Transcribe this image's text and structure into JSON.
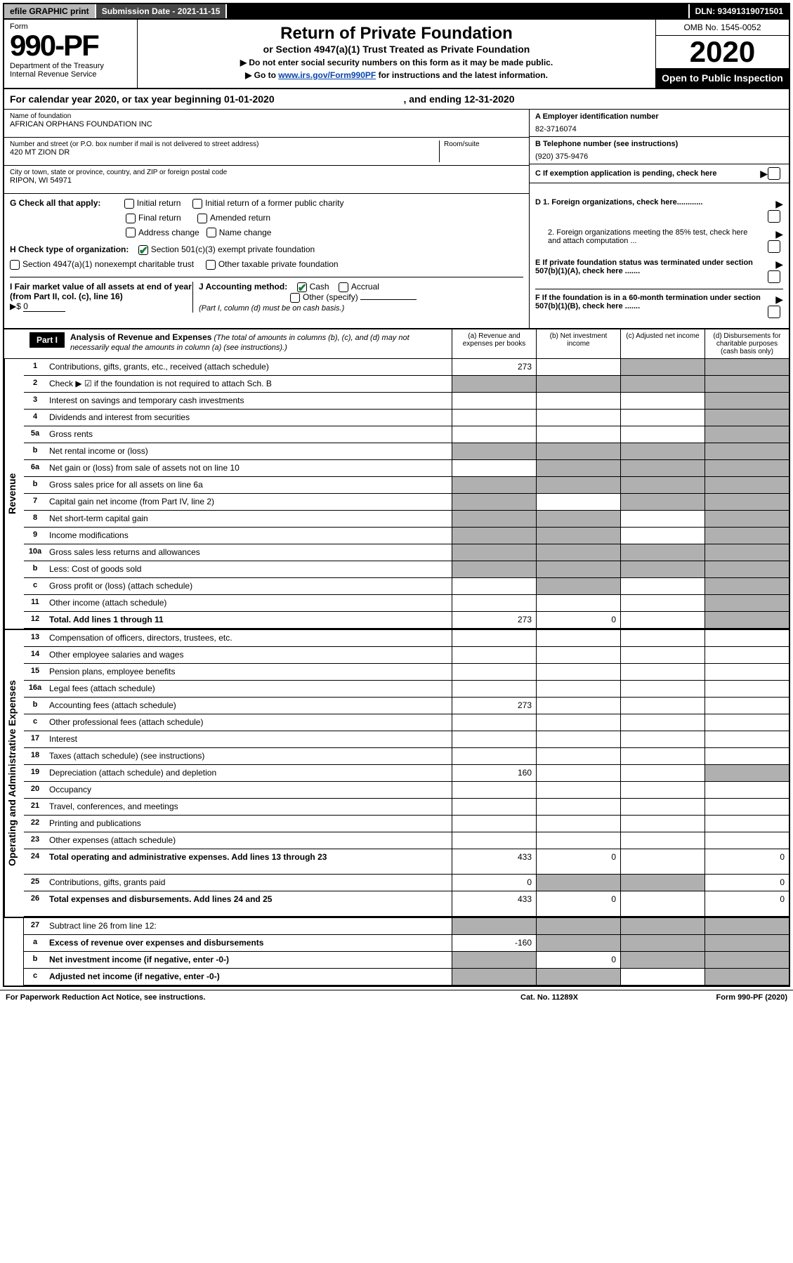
{
  "topbar": {
    "efile": "efile GRAPHIC print",
    "subdate": "Submission Date - 2021-11-15",
    "dln": "DLN: 93491319071501"
  },
  "header": {
    "form_label": "Form",
    "form_num": "990-PF",
    "dept": "Department of the Treasury\nInternal Revenue Service",
    "title": "Return of Private Foundation",
    "subtitle": "or Section 4947(a)(1) Trust Treated as Private Foundation",
    "instr1": "▶ Do not enter social security numbers on this form as it may be made public.",
    "instr2_pre": "▶ Go to ",
    "instr2_link": "www.irs.gov/Form990PF",
    "instr2_post": " for instructions and the latest information.",
    "omb": "OMB No. 1545-0052",
    "year": "2020",
    "open_public": "Open to Public Inspection"
  },
  "calyear": {
    "text_pre": "For calendar year 2020, or tax year beginning ",
    "begin": "01-01-2020",
    "text_mid": " , and ending ",
    "end": "12-31-2020"
  },
  "entity": {
    "name_label": "Name of foundation",
    "name": "AFRICAN ORPHANS FOUNDATION INC",
    "addr_label": "Number and street (or P.O. box number if mail is not delivered to street address)",
    "room_label": "Room/suite",
    "addr": "420 MT ZION DR",
    "city_label": "City or town, state or province, country, and ZIP or foreign postal code",
    "city": "RIPON, WI  54971"
  },
  "right": {
    "a_label": "A Employer identification number",
    "a_value": "82-3716074",
    "b_label": "B Telephone number (see instructions)",
    "b_value": "(920) 375-9476",
    "c_label": "C If exemption application is pending, check here",
    "d1_label": "D 1. Foreign organizations, check here............",
    "d2_label": "2. Foreign organizations meeting the 85% test, check here and attach computation ...",
    "e_label": "E  If private foundation status was terminated under section 507(b)(1)(A), check here .......",
    "f_label": "F  If the foundation is in a 60-month termination under section 507(b)(1)(B), check here ......."
  },
  "g": {
    "label": "G Check all that apply:",
    "opts": [
      "Initial return",
      "Initial return of a former public charity",
      "Final return",
      "Amended return",
      "Address change",
      "Name change"
    ]
  },
  "h": {
    "label": "H Check type of organization:",
    "opt1": "Section 501(c)(3) exempt private foundation",
    "opt2": "Section 4947(a)(1) nonexempt charitable trust",
    "opt3": "Other taxable private foundation"
  },
  "i": {
    "label": "I Fair market value of all assets at end of year (from Part II, col. (c), line 16)",
    "value_prefix": "▶$ ",
    "value": "0"
  },
  "j": {
    "label": "J Accounting method:",
    "cash": "Cash",
    "accrual": "Accrual",
    "other": "Other (specify)",
    "note": "(Part I, column (d) must be on cash basis.)"
  },
  "part1": {
    "label": "Part I",
    "title": "Analysis of Revenue and Expenses",
    "note": " (The total of amounts in columns (b), (c), and (d) may not necessarily equal the amounts in column (a) (see instructions).)",
    "col_a": "(a) Revenue and expenses per books",
    "col_b": "(b) Net investment income",
    "col_c": "(c) Adjusted net income",
    "col_d": "(d) Disbursements for charitable purposes (cash basis only)"
  },
  "sidelabels": {
    "revenue": "Revenue",
    "expenses": "Operating and Administrative Expenses"
  },
  "rows": [
    {
      "n": "1",
      "d": "Contributions, gifts, grants, etc., received (attach schedule)",
      "a": "273",
      "b": "",
      "c": "sh",
      "dcol": "sh"
    },
    {
      "n": "2",
      "d": "Check ▶ ☑ if the foundation is not required to attach Sch. B",
      "a": "sh",
      "b": "sh",
      "c": "sh",
      "dcol": "sh",
      "nocells": true
    },
    {
      "n": "3",
      "d": "Interest on savings and temporary cash investments",
      "a": "",
      "b": "",
      "c": "",
      "dcol": "sh"
    },
    {
      "n": "4",
      "d": "Dividends and interest from securities",
      "a": "",
      "b": "",
      "c": "",
      "dcol": "sh"
    },
    {
      "n": "5a",
      "d": "Gross rents",
      "a": "",
      "b": "",
      "c": "",
      "dcol": "sh"
    },
    {
      "n": "b",
      "d": "Net rental income or (loss)",
      "a": "sh",
      "b": "sh",
      "c": "sh",
      "dcol": "sh",
      "inset": true
    },
    {
      "n": "6a",
      "d": "Net gain or (loss) from sale of assets not on line 10",
      "a": "",
      "b": "sh",
      "c": "sh",
      "dcol": "sh"
    },
    {
      "n": "b",
      "d": "Gross sales price for all assets on line 6a",
      "a": "sh",
      "b": "sh",
      "c": "sh",
      "dcol": "sh",
      "inset": true
    },
    {
      "n": "7",
      "d": "Capital gain net income (from Part IV, line 2)",
      "a": "sh",
      "b": "",
      "c": "sh",
      "dcol": "sh"
    },
    {
      "n": "8",
      "d": "Net short-term capital gain",
      "a": "sh",
      "b": "sh",
      "c": "",
      "dcol": "sh"
    },
    {
      "n": "9",
      "d": "Income modifications",
      "a": "sh",
      "b": "sh",
      "c": "",
      "dcol": "sh"
    },
    {
      "n": "10a",
      "d": "Gross sales less returns and allowances",
      "a": "sh",
      "b": "sh",
      "c": "sh",
      "dcol": "sh",
      "inset": true
    },
    {
      "n": "b",
      "d": "Less: Cost of goods sold",
      "a": "sh",
      "b": "sh",
      "c": "sh",
      "dcol": "sh",
      "inset": true
    },
    {
      "n": "c",
      "d": "Gross profit or (loss) (attach schedule)",
      "a": "",
      "b": "sh",
      "c": "",
      "dcol": "sh"
    },
    {
      "n": "11",
      "d": "Other income (attach schedule)",
      "a": "",
      "b": "",
      "c": "",
      "dcol": "sh"
    },
    {
      "n": "12",
      "d": "Total. Add lines 1 through 11",
      "a": "273",
      "b": "0",
      "c": "",
      "dcol": "sh",
      "bold": true
    }
  ],
  "exp_rows": [
    {
      "n": "13",
      "d": "Compensation of officers, directors, trustees, etc.",
      "a": "",
      "b": "",
      "c": "",
      "dcol": ""
    },
    {
      "n": "14",
      "d": "Other employee salaries and wages",
      "a": "",
      "b": "",
      "c": "",
      "dcol": ""
    },
    {
      "n": "15",
      "d": "Pension plans, employee benefits",
      "a": "",
      "b": "",
      "c": "",
      "dcol": ""
    },
    {
      "n": "16a",
      "d": "Legal fees (attach schedule)",
      "a": "",
      "b": "",
      "c": "",
      "dcol": ""
    },
    {
      "n": "b",
      "d": "Accounting fees (attach schedule)",
      "a": "273",
      "b": "",
      "c": "",
      "dcol": ""
    },
    {
      "n": "c",
      "d": "Other professional fees (attach schedule)",
      "a": "",
      "b": "",
      "c": "",
      "dcol": ""
    },
    {
      "n": "17",
      "d": "Interest",
      "a": "",
      "b": "",
      "c": "",
      "dcol": ""
    },
    {
      "n": "18",
      "d": "Taxes (attach schedule) (see instructions)",
      "a": "",
      "b": "",
      "c": "",
      "dcol": ""
    },
    {
      "n": "19",
      "d": "Depreciation (attach schedule) and depletion",
      "a": "160",
      "b": "",
      "c": "",
      "dcol": "sh"
    },
    {
      "n": "20",
      "d": "Occupancy",
      "a": "",
      "b": "",
      "c": "",
      "dcol": ""
    },
    {
      "n": "21",
      "d": "Travel, conferences, and meetings",
      "a": "",
      "b": "",
      "c": "",
      "dcol": ""
    },
    {
      "n": "22",
      "d": "Printing and publications",
      "a": "",
      "b": "",
      "c": "",
      "dcol": ""
    },
    {
      "n": "23",
      "d": "Other expenses (attach schedule)",
      "a": "",
      "b": "",
      "c": "",
      "dcol": ""
    },
    {
      "n": "24",
      "d": "Total operating and administrative expenses. Add lines 13 through 23",
      "a": "433",
      "b": "0",
      "c": "",
      "dcol": "0",
      "bold": true,
      "tall": true
    },
    {
      "n": "25",
      "d": "Contributions, gifts, grants paid",
      "a": "0",
      "b": "sh",
      "c": "sh",
      "dcol": "0"
    },
    {
      "n": "26",
      "d": "Total expenses and disbursements. Add lines 24 and 25",
      "a": "433",
      "b": "0",
      "c": "",
      "dcol": "0",
      "bold": true,
      "tall": true
    }
  ],
  "net_rows": [
    {
      "n": "27",
      "d": "Subtract line 26 from line 12:",
      "a": "sh",
      "b": "sh",
      "c": "sh",
      "dcol": "sh"
    },
    {
      "n": "a",
      "d": "Excess of revenue over expenses and disbursements",
      "a": "-160",
      "b": "sh",
      "c": "sh",
      "dcol": "sh",
      "bold": true
    },
    {
      "n": "b",
      "d": "Net investment income (if negative, enter -0-)",
      "a": "sh",
      "b": "0",
      "c": "sh",
      "dcol": "sh",
      "bold": true
    },
    {
      "n": "c",
      "d": "Adjusted net income (if negative, enter -0-)",
      "a": "sh",
      "b": "sh",
      "c": "",
      "dcol": "sh",
      "bold": true
    }
  ],
  "footer": {
    "left": "For Paperwork Reduction Act Notice, see instructions.",
    "mid": "Cat. No. 11289X",
    "right": "Form 990-PF (2020)"
  },
  "colors": {
    "shaded": "#b0b0b0",
    "black": "#000000",
    "link": "#0645ad",
    "check": "#1a7f37"
  }
}
